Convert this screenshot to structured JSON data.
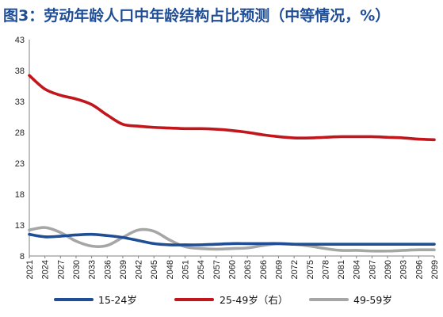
{
  "title": "图3：劳动年龄人口中年龄结构占比预测（中等情况，%）",
  "chart_data": {
    "type": "line",
    "title": "图3：劳动年龄人口中年龄结构占比预测（中等情况，%）",
    "x_tick_labels": [
      "2021",
      "2024",
      "2027",
      "2030",
      "2033",
      "2036",
      "2039",
      "2042",
      "2045",
      "2048",
      "2051",
      "2054",
      "2057",
      "2060",
      "2063",
      "2066",
      "2069",
      "2072",
      "2075",
      "2078",
      "2081",
      "2084",
      "2087",
      "2090",
      "2093",
      "2096",
      "2099"
    ],
    "y_tick_labels": [
      "8",
      "13",
      "18",
      "23",
      "28",
      "33",
      "38",
      "43"
    ],
    "ylim": [
      8,
      43
    ],
    "x": [
      2021,
      2024,
      2027,
      2030,
      2033,
      2036,
      2039,
      2042,
      2045,
      2048,
      2051,
      2054,
      2057,
      2060,
      2063,
      2066,
      2069,
      2072,
      2075,
      2078,
      2081,
      2084,
      2087,
      2090,
      2093,
      2096,
      2099
    ],
    "series": [
      {
        "name": "15-24岁",
        "color": "#1f4e96",
        "values": [
          11.5,
          11.1,
          11.2,
          11.4,
          11.5,
          11.3,
          11.0,
          10.5,
          10.0,
          9.8,
          9.8,
          9.8,
          9.9,
          10.0,
          10.0,
          10.0,
          10.0,
          9.9,
          9.9,
          9.9,
          9.9,
          9.9,
          9.9,
          9.9,
          9.9,
          9.9,
          9.9
        ]
      },
      {
        "name": "25-49岁（右）",
        "color": "#c0161c",
        "values": [
          37.2,
          35.0,
          34.0,
          33.4,
          32.5,
          30.8,
          29.3,
          29.0,
          28.8,
          28.7,
          28.6,
          28.6,
          28.5,
          28.3,
          28.0,
          27.6,
          27.3,
          27.1,
          27.1,
          27.2,
          27.3,
          27.3,
          27.3,
          27.2,
          27.1,
          26.9,
          26.8
        ]
      },
      {
        "name": "49-59岁",
        "color": "#a6a6a6",
        "values": [
          12.2,
          12.6,
          11.8,
          10.4,
          9.6,
          9.7,
          11.0,
          12.2,
          12.0,
          10.6,
          9.5,
          9.2,
          9.1,
          9.2,
          9.3,
          9.7,
          10.0,
          9.9,
          9.6,
          9.2,
          8.9,
          8.9,
          8.8,
          8.8,
          8.9,
          9.0,
          9.0
        ]
      }
    ],
    "legend_position": "bottom",
    "grid": false
  }
}
